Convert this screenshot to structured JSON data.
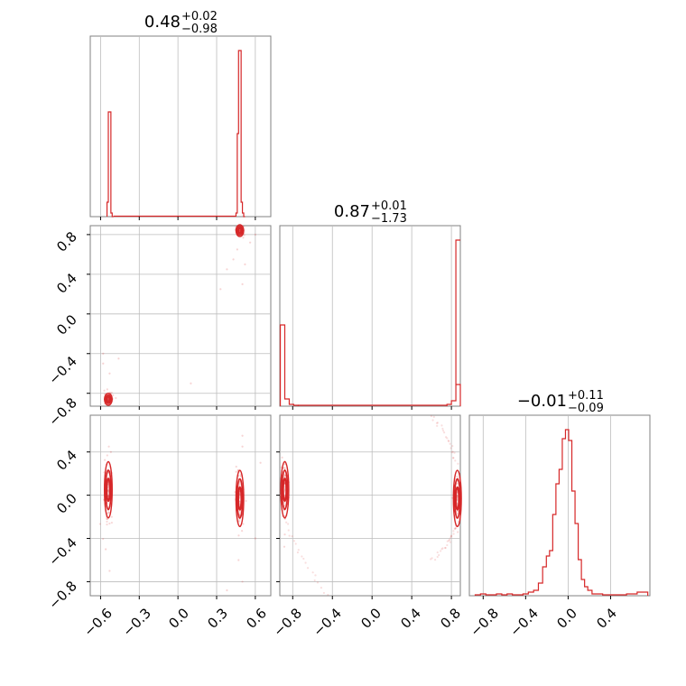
{
  "chart_data": [
    {
      "type": "histogram",
      "panel": "diag-1",
      "title": {
        "value": "0.48",
        "plus": "+0.02",
        "minus": "−0.98"
      },
      "xlim": [
        -0.68,
        0.72
      ],
      "bins": [
        -0.55,
        -0.54,
        -0.53,
        -0.52,
        -0.51,
        0.45,
        0.46,
        0.47,
        0.48,
        0.49,
        0.5,
        0.51
      ],
      "heights": [
        0.08,
        0.58,
        0.58,
        0.02,
        0.0,
        0.02,
        0.46,
        0.92,
        0.92,
        0.08,
        0.02,
        0.0
      ]
    },
    {
      "type": "histogram",
      "panel": "diag-2",
      "title": {
        "value": "0.87",
        "plus": "+0.01",
        "minus": "−1.73"
      },
      "xlim": [
        -0.93,
        0.89
      ],
      "edges": [
        -0.925,
        -0.88,
        -0.835,
        -0.79,
        0.755,
        0.8,
        0.845,
        0.89
      ],
      "heights": [
        0.45,
        0.04,
        0.01,
        0.005,
        0.01,
        0.03,
        0.12,
        0.92
      ]
    },
    {
      "type": "histogram",
      "panel": "diag-3",
      "title": {
        "value": "−0.01",
        "plus": "+0.11",
        "minus": "−0.09"
      },
      "xlim": [
        -0.93,
        0.77
      ],
      "centers": [
        -0.85,
        -0.8,
        -0.75,
        -0.7,
        -0.65,
        -0.6,
        -0.55,
        -0.5,
        -0.45,
        -0.4,
        -0.35,
        -0.3,
        -0.26,
        -0.22,
        -0.19,
        -0.16,
        -0.13,
        -0.1,
        -0.07,
        -0.04,
        -0.01,
        0.02,
        0.05,
        0.08,
        0.11,
        0.14,
        0.17,
        0.2,
        0.25,
        0.3,
        0.35,
        0.4,
        0.5,
        0.6,
        0.7
      ],
      "heights": [
        0.005,
        0.01,
        0.005,
        0.005,
        0.01,
        0.005,
        0.01,
        0.005,
        0.005,
        0.01,
        0.02,
        0.03,
        0.07,
        0.16,
        0.22,
        0.25,
        0.45,
        0.62,
        0.7,
        0.87,
        0.92,
        0.86,
        0.58,
        0.4,
        0.2,
        0.09,
        0.05,
        0.03,
        0.01,
        0.01,
        0.005,
        0.005,
        0.005,
        0.01,
        0.02
      ]
    },
    {
      "type": "scatter",
      "panel": "row2-col1",
      "xlim": [
        -0.68,
        0.72
      ],
      "ylim": [
        -0.93,
        0.89
      ],
      "clusters": [
        {
          "x": -0.54,
          "y": -0.86,
          "sx": 0.015,
          "sy": 0.03
        },
        {
          "x": 0.48,
          "y": 0.84,
          "sx": 0.015,
          "sy": 0.03
        }
      ],
      "stragglers": [
        [
          -0.58,
          -0.4
        ],
        [
          -0.58,
          -0.5
        ],
        [
          -0.53,
          -0.6
        ],
        [
          -0.46,
          -0.45
        ],
        [
          0.33,
          0.25
        ],
        [
          0.38,
          0.45
        ],
        [
          0.43,
          0.55
        ],
        [
          0.46,
          0.65
        ],
        [
          0.5,
          0.3
        ],
        [
          0.52,
          0.5
        ],
        [
          0.56,
          0.72
        ],
        [
          0.6,
          0.8
        ],
        [
          0.1,
          -0.7
        ]
      ]
    },
    {
      "type": "scatter",
      "panel": "row3-col1",
      "xlim": [
        -0.68,
        0.72
      ],
      "ylim": [
        -0.93,
        0.74
      ],
      "clusters": [
        {
          "x": -0.54,
          "y": 0.05,
          "sx": 0.015,
          "sy": 0.13
        },
        {
          "x": 0.48,
          "y": -0.03,
          "sx": 0.015,
          "sy": 0.13
        }
      ],
      "stragglers": [
        [
          -0.56,
          -0.5
        ],
        [
          -0.53,
          -0.7
        ],
        [
          -0.52,
          0.4
        ],
        [
          0.5,
          0.45
        ],
        [
          0.5,
          0.55
        ],
        [
          0.47,
          -0.6
        ],
        [
          0.5,
          -0.8
        ],
        [
          0.38,
          -0.88
        ],
        [
          0.6,
          -0.4
        ],
        [
          0.64,
          0.3
        ]
      ]
    },
    {
      "type": "scatter",
      "panel": "row3-col2",
      "xlim": [
        -0.93,
        0.89
      ],
      "ylim": [
        -0.93,
        0.74
      ],
      "clusters": [
        {
          "x": -0.88,
          "y": 0.05,
          "sx": 0.02,
          "sy": 0.13
        },
        {
          "x": 0.86,
          "y": -0.03,
          "sx": 0.02,
          "sy": 0.13
        }
      ],
      "arcs": [
        {
          "from": [
            -0.9,
            -0.1
          ],
          "to": [
            -0.45,
            -0.92
          ]
        },
        {
          "from": [
            0.85,
            0.3
          ],
          "to": [
            0.6,
            0.74
          ]
        },
        {
          "from": [
            0.84,
            -0.3
          ],
          "to": [
            0.6,
            -0.6
          ]
        }
      ]
    }
  ],
  "axes": {
    "x1_ticks": [
      "−0.6",
      "−0.3",
      "0.0",
      "0.3",
      "0.6"
    ],
    "x2_ticks": [
      "−0.8",
      "−0.4",
      "0.0",
      "0.4",
      "0.8"
    ],
    "x3_ticks": [
      "−0.8",
      "−0.4",
      "0.0",
      "0.4"
    ],
    "y2_ticks": [
      "0.8",
      "0.4",
      "0.0",
      "−0.4",
      "−0.8"
    ],
    "y3_ticks": [
      "0.4",
      "0.0",
      "−0.4",
      "−0.8"
    ]
  },
  "colors": {
    "line": "#d62728",
    "grid": "#bdbdbd",
    "frame": "#808080"
  }
}
